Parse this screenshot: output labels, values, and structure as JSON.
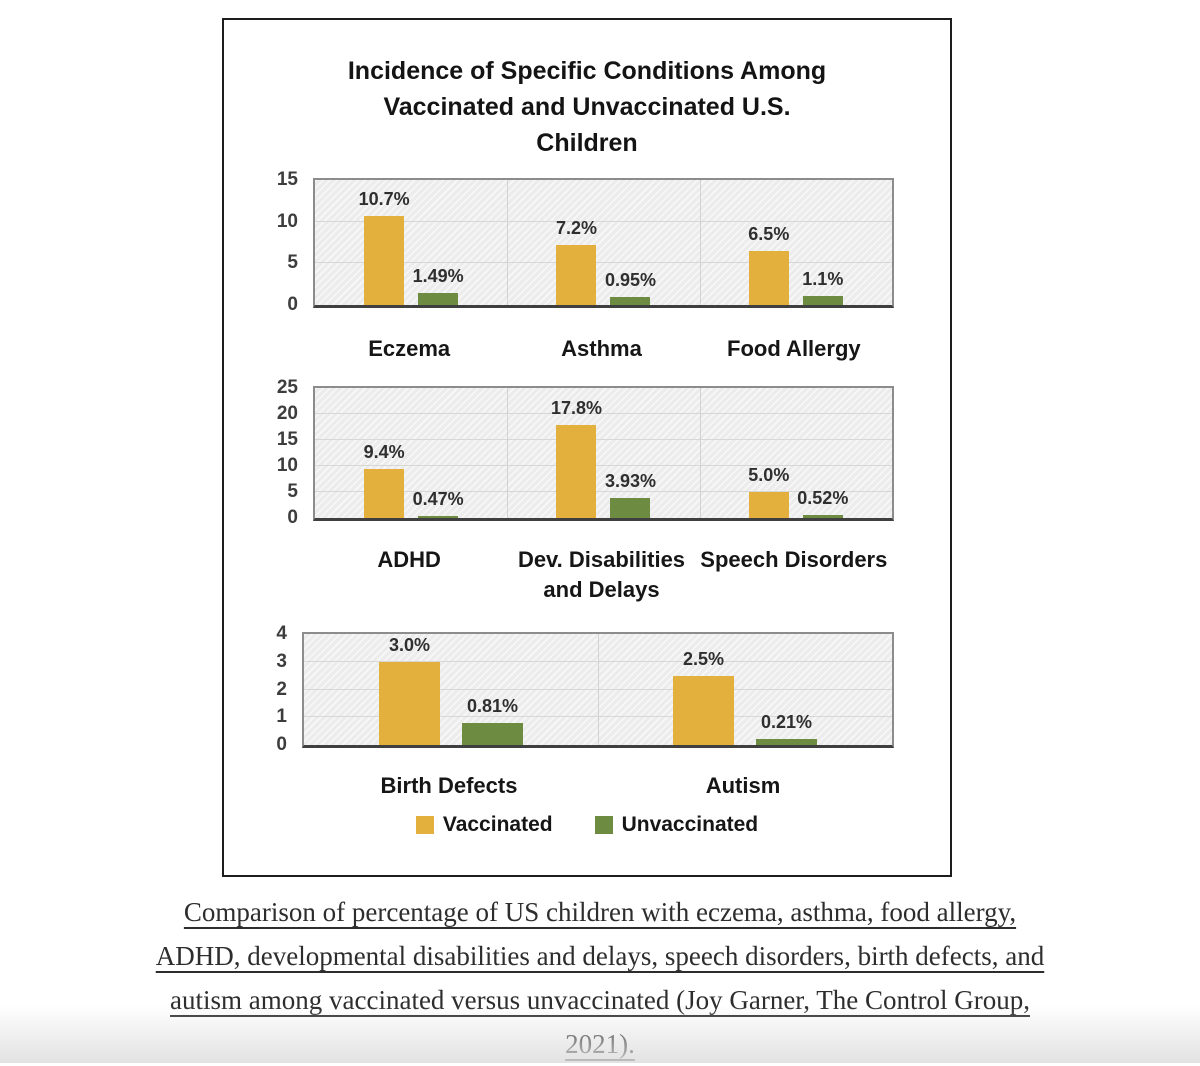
{
  "figure": {
    "title_lines": [
      "Incidence of Specific Conditions Among",
      "Vaccinated and Unvaccinated U.S.",
      "Children"
    ]
  },
  "legend": {
    "position": "bottom",
    "items": [
      {
        "label": "Vaccinated",
        "color": "#E3AF3D"
      },
      {
        "label": "Unvaccinated",
        "color": "#6E8B42"
      }
    ]
  },
  "chart_data": [
    {
      "type": "bar",
      "categories": [
        "Eczema",
        "Asthma",
        "Food Allergy"
      ],
      "series": [
        {
          "name": "Vaccinated",
          "color": "#E3AF3D",
          "values": [
            10.7,
            7.2,
            6.5
          ],
          "labels": [
            "10.7%",
            "7.2%",
            "6.5%"
          ]
        },
        {
          "name": "Unvaccinated",
          "color": "#6E8B42",
          "values": [
            1.49,
            0.95,
            1.1
          ],
          "labels": [
            "1.49%",
            "0.95%",
            "1.1%"
          ]
        }
      ],
      "ylim": [
        0,
        15
      ],
      "yticks": [
        0,
        5,
        10,
        15
      ],
      "grid": true
    },
    {
      "type": "bar",
      "categories": [
        "ADHD",
        "Dev. Disabilities\nand Delays",
        "Speech Disorders"
      ],
      "series": [
        {
          "name": "Vaccinated",
          "color": "#E3AF3D",
          "values": [
            9.4,
            17.8,
            5.0
          ],
          "labels": [
            "9.4%",
            "17.8%",
            "5.0%"
          ]
        },
        {
          "name": "Unvaccinated",
          "color": "#6E8B42",
          "values": [
            0.47,
            3.93,
            0.52
          ],
          "labels": [
            "0.47%",
            "3.93%",
            "0.52%"
          ]
        }
      ],
      "ylim": [
        0,
        25
      ],
      "yticks": [
        0,
        5,
        10,
        15,
        20,
        25
      ],
      "grid": true
    },
    {
      "type": "bar",
      "categories": [
        "Birth Defects",
        "Autism"
      ],
      "series": [
        {
          "name": "Vaccinated",
          "color": "#E3AF3D",
          "values": [
            3.0,
            2.5
          ],
          "labels": [
            "3.0%",
            "2.5%"
          ]
        },
        {
          "name": "Unvaccinated",
          "color": "#6E8B42",
          "values": [
            0.81,
            0.21
          ],
          "labels": [
            "0.81%",
            "0.21%"
          ]
        }
      ],
      "ylim": [
        0,
        4
      ],
      "yticks": [
        0,
        1,
        2,
        3,
        4
      ],
      "grid": true
    }
  ],
  "caption": {
    "lines": [
      "Comparison of percentage of US children with eczema, asthma, food allergy,",
      "ADHD, developmental disabilities and delays, speech disorders, birth defects, and",
      "autism among vaccinated versus unvaccinated (Joy Garner, The Control Group,",
      "2021)."
    ]
  }
}
